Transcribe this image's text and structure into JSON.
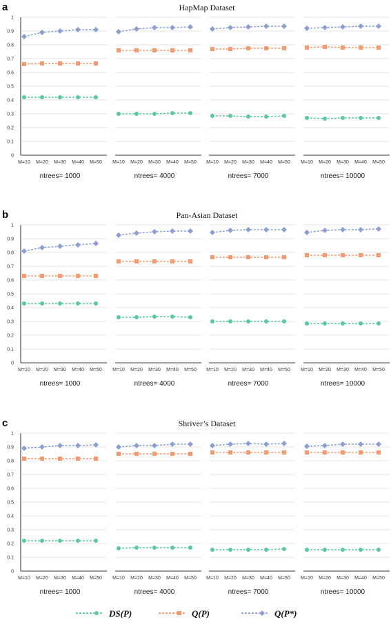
{
  "colors": {
    "ds_p": "#5cc7a4",
    "q_p": "#f79a72",
    "q_p_star": "#8d9fd0",
    "grid": "#e6e6e6",
    "axis": "#333333"
  },
  "legend": [
    {
      "key": "ds_p",
      "label": "DS(P)",
      "marker": "circle"
    },
    {
      "key": "q_p",
      "label": "Q(P)",
      "marker": "square"
    },
    {
      "key": "q_p_star",
      "label": "Q(P*)",
      "marker": "diamond"
    }
  ],
  "chart_data": [
    {
      "type": "line",
      "panel_label": "a",
      "title": "HapMap Dataset",
      "y_ticks": [
        "0",
        "0.1",
        "0.2",
        "0.3",
        "0.4",
        "0.5",
        "0.6",
        "0.7",
        "0.8",
        "0.9",
        "1"
      ],
      "ylim": [
        0,
        1
      ],
      "grid": true,
      "categories": [
        "M=10",
        "M=20",
        "M=30",
        "M=40",
        "M=50"
      ],
      "subplots": [
        {
          "label": "ntrees= 1000",
          "series": {
            "ds_p": [
              0.42,
              0.42,
              0.42,
              0.42,
              0.42
            ],
            "q_p": [
              0.66,
              0.665,
              0.665,
              0.665,
              0.665
            ],
            "q_p_star": [
              0.86,
              0.89,
              0.9,
              0.91,
              0.91
            ]
          }
        },
        {
          "label": "ntrees= 4000",
          "series": {
            "ds_p": [
              0.3,
              0.3,
              0.3,
              0.305,
              0.305
            ],
            "q_p": [
              0.76,
              0.76,
              0.76,
              0.76,
              0.76
            ],
            "q_p_star": [
              0.895,
              0.915,
              0.925,
              0.925,
              0.93
            ]
          }
        },
        {
          "label": "ntrees= 7000",
          "series": {
            "ds_p": [
              0.285,
              0.285,
              0.28,
              0.28,
              0.285
            ],
            "q_p": [
              0.77,
              0.77,
              0.775,
              0.775,
              0.775
            ],
            "q_p_star": [
              0.915,
              0.925,
              0.93,
              0.935,
              0.935
            ]
          }
        },
        {
          "label": "ntrees= 10000",
          "series": {
            "ds_p": [
              0.27,
              0.265,
              0.27,
              0.27,
              0.27
            ],
            "q_p": [
              0.78,
              0.785,
              0.78,
              0.78,
              0.78
            ],
            "q_p_star": [
              0.92,
              0.925,
              0.93,
              0.935,
              0.935
            ]
          }
        }
      ]
    },
    {
      "type": "line",
      "panel_label": "b",
      "title": "Pan-Asian Dataset",
      "y_ticks": [
        "0",
        "0.1",
        "0.2",
        "0.3",
        "0.4",
        "0.5",
        "0.6",
        "0.7",
        "0.8",
        "0.9",
        "1"
      ],
      "ylim": [
        0,
        1
      ],
      "grid": true,
      "categories": [
        "M=10",
        "M=20",
        "M=30",
        "M=40",
        "M=50"
      ],
      "subplots": [
        {
          "label": "ntrees= 1000",
          "series": {
            "ds_p": [
              0.43,
              0.43,
              0.43,
              0.43,
              0.43
            ],
            "q_p": [
              0.63,
              0.63,
              0.63,
              0.63,
              0.63
            ],
            "q_p_star": [
              0.81,
              0.835,
              0.845,
              0.855,
              0.865
            ]
          }
        },
        {
          "label": "ntrees= 4000",
          "series": {
            "ds_p": [
              0.33,
              0.33,
              0.335,
              0.335,
              0.33
            ],
            "q_p": [
              0.735,
              0.735,
              0.735,
              0.735,
              0.735
            ],
            "q_p_star": [
              0.925,
              0.94,
              0.95,
              0.955,
              0.955
            ]
          }
        },
        {
          "label": "ntrees= 7000",
          "series": {
            "ds_p": [
              0.3,
              0.3,
              0.3,
              0.3,
              0.3
            ],
            "q_p": [
              0.765,
              0.765,
              0.765,
              0.765,
              0.765
            ],
            "q_p_star": [
              0.945,
              0.96,
              0.965,
              0.965,
              0.965
            ]
          }
        },
        {
          "label": "ntrees= 10000",
          "series": {
            "ds_p": [
              0.285,
              0.285,
              0.285,
              0.285,
              0.285
            ],
            "q_p": [
              0.78,
              0.78,
              0.78,
              0.78,
              0.78
            ],
            "q_p_star": [
              0.945,
              0.96,
              0.965,
              0.965,
              0.97
            ]
          }
        }
      ]
    },
    {
      "type": "line",
      "panel_label": "c",
      "title": "Shriver’s Dataset",
      "y_ticks": [
        "0",
        "0.1",
        "0.2",
        "0.3",
        "0.4",
        "0.5",
        "0.6",
        "0.7",
        "0.8",
        "0.9",
        "1"
      ],
      "ylim": [
        0,
        1
      ],
      "grid": true,
      "categories": [
        "M=10",
        "M=20",
        "M=30",
        "M=40",
        "M=50"
      ],
      "subplots": [
        {
          "label": "ntrees= 1000",
          "series": {
            "ds_p": [
              0.22,
              0.22,
              0.22,
              0.22,
              0.22
            ],
            "q_p": [
              0.815,
              0.815,
              0.815,
              0.815,
              0.815
            ],
            "q_p_star": [
              0.89,
              0.9,
              0.91,
              0.91,
              0.915
            ]
          }
        },
        {
          "label": "ntrees= 4000",
          "series": {
            "ds_p": [
              0.165,
              0.17,
              0.17,
              0.17,
              0.17
            ],
            "q_p": [
              0.85,
              0.85,
              0.85,
              0.85,
              0.85
            ],
            "q_p_star": [
              0.9,
              0.91,
              0.91,
              0.92,
              0.92
            ]
          }
        },
        {
          "label": "ntrees= 7000",
          "series": {
            "ds_p": [
              0.155,
              0.155,
              0.155,
              0.155,
              0.16
            ],
            "q_p": [
              0.86,
              0.86,
              0.86,
              0.86,
              0.86
            ],
            "q_p_star": [
              0.91,
              0.92,
              0.925,
              0.92,
              0.925
            ]
          }
        },
        {
          "label": "ntrees= 10000",
          "series": {
            "ds_p": [
              0.155,
              0.155,
              0.155,
              0.155,
              0.155
            ],
            "q_p": [
              0.86,
              0.86,
              0.86,
              0.86,
              0.86
            ],
            "q_p_star": [
              0.905,
              0.91,
              0.92,
              0.92,
              0.92
            ]
          }
        }
      ]
    }
  ]
}
